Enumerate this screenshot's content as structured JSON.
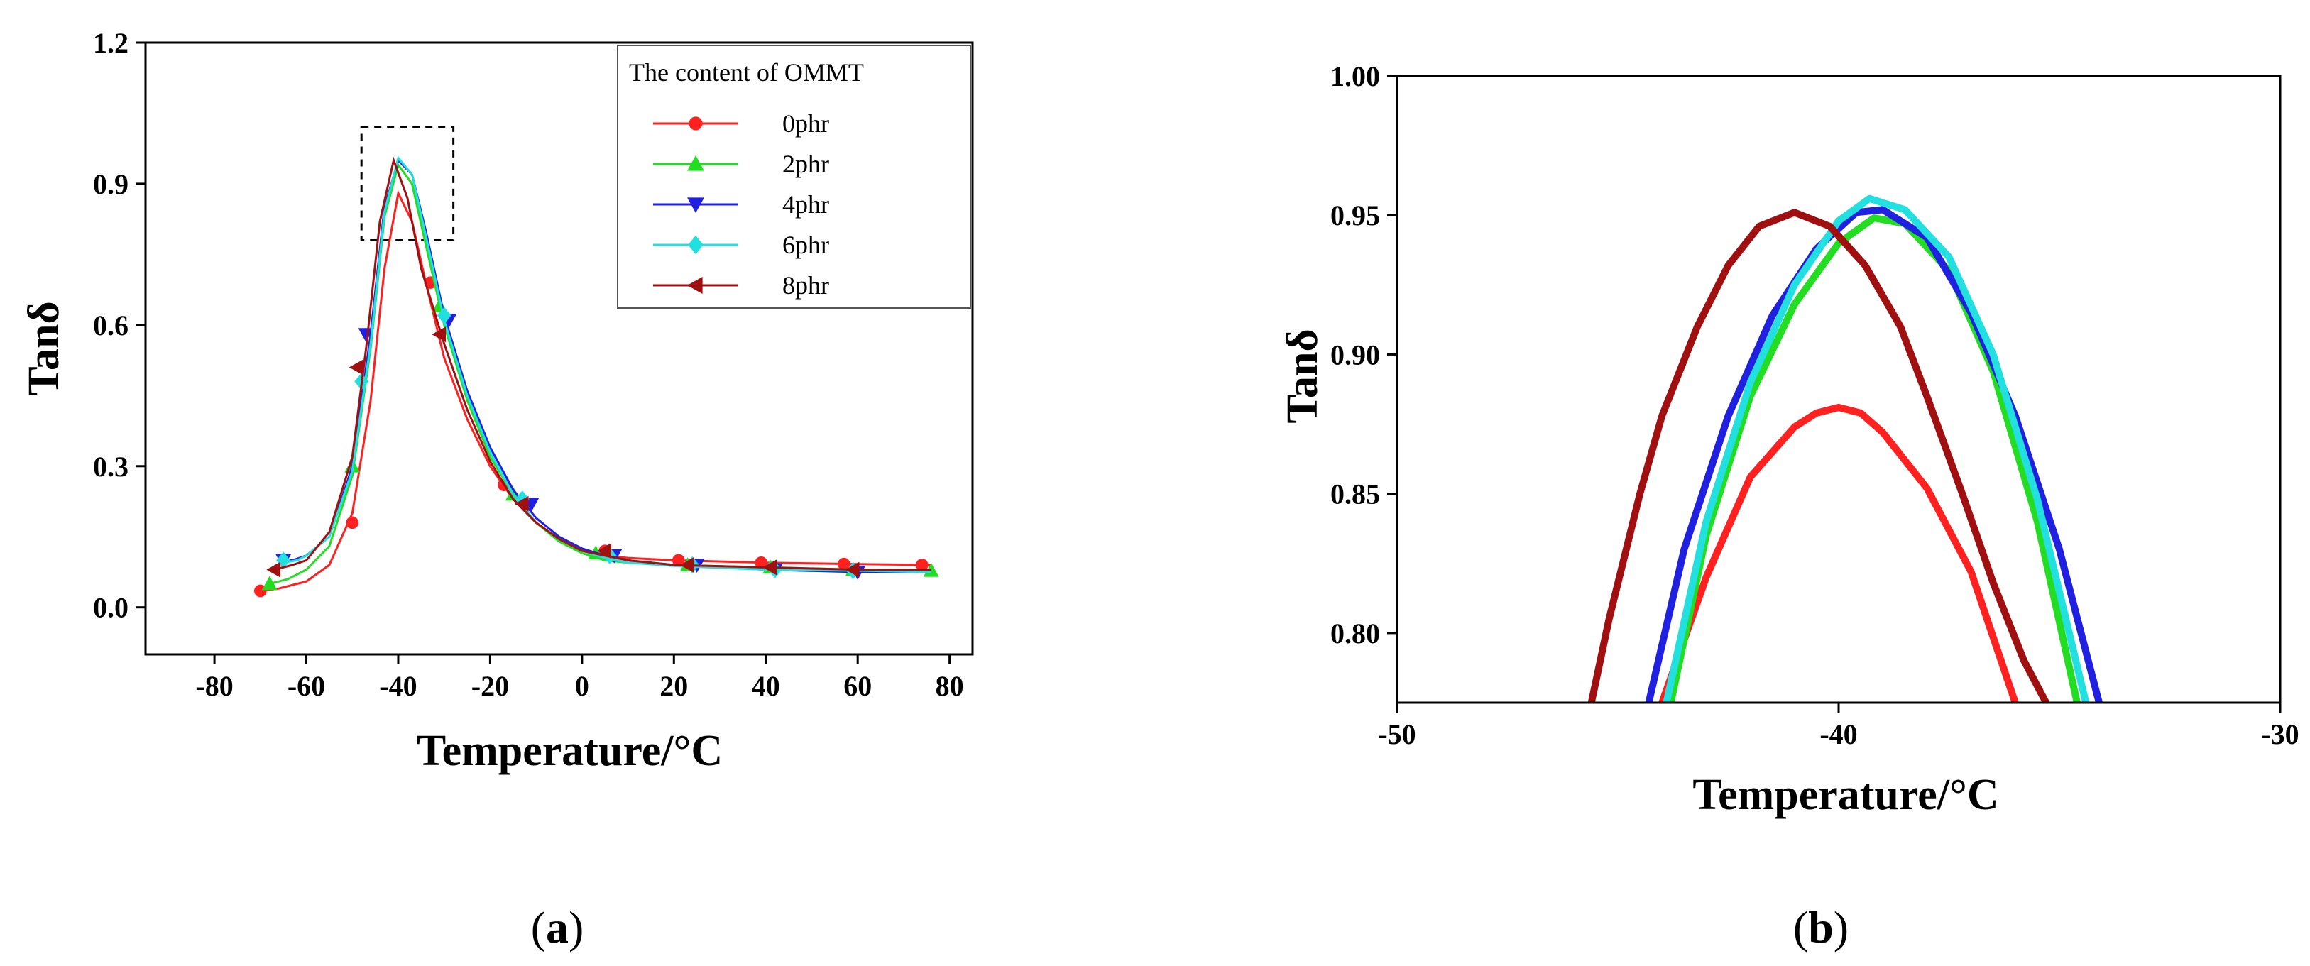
{
  "chart_data": [
    {
      "id": "a",
      "type": "line",
      "panel_label": "(a)",
      "panel_letter": "a",
      "xlabel": "Temperature/°C",
      "ylabel": "Tanδ",
      "xlim": [
        -95,
        85
      ],
      "ylim": [
        -0.1,
        1.2
      ],
      "xticks": [
        -80,
        -60,
        -40,
        -20,
        0,
        20,
        40,
        60,
        80
      ],
      "yticks": [
        0.0,
        0.3,
        0.6,
        0.9,
        1.2
      ],
      "xtick_labels": [
        "-80",
        "-60",
        "-40",
        "-20",
        "0",
        "20",
        "40",
        "60",
        "80"
      ],
      "ytick_labels": [
        "0.0",
        "0.3",
        "0.6",
        "0.9",
        "1.2"
      ],
      "legend": {
        "title": "The content of OMMT",
        "placement": "top-right"
      },
      "annotation": {
        "type": "dashed-box",
        "x_range": [
          -48,
          -28
        ],
        "y_range": [
          0.78,
          1.02
        ]
      },
      "series": [
        {
          "name": "0phr",
          "color": "#ff2020",
          "marker": "circle",
          "x": [
            -70,
            -66,
            -60,
            -55,
            -50,
            -46,
            -43,
            -40,
            -37,
            -34,
            -30,
            -25,
            -20,
            -15,
            -10,
            -5,
            0,
            5,
            10,
            20,
            40,
            60,
            76
          ],
          "y": [
            0.035,
            0.04,
            0.055,
            0.09,
            0.2,
            0.44,
            0.72,
            0.88,
            0.82,
            0.69,
            0.53,
            0.4,
            0.3,
            0.23,
            0.18,
            0.145,
            0.12,
            0.11,
            0.105,
            0.1,
            0.095,
            0.092,
            0.09
          ],
          "marker_x": [
            -70,
            -50,
            -33,
            -17,
            5,
            21,
            39,
            57,
            74
          ],
          "marker_y": [
            0.035,
            0.18,
            0.69,
            0.26,
            0.12,
            0.1,
            0.095,
            0.092,
            0.09
          ]
        },
        {
          "name": "2phr",
          "color": "#22dd22",
          "marker": "triangle-up",
          "x": [
            -68,
            -64,
            -60,
            -55,
            -50,
            -46,
            -43,
            -40,
            -37,
            -34,
            -30,
            -25,
            -20,
            -15,
            -10,
            -5,
            0,
            5,
            10,
            20,
            40,
            60,
            76
          ],
          "y": [
            0.05,
            0.06,
            0.08,
            0.13,
            0.28,
            0.55,
            0.83,
            0.94,
            0.9,
            0.77,
            0.6,
            0.44,
            0.32,
            0.24,
            0.18,
            0.14,
            0.115,
            0.1,
            0.095,
            0.09,
            0.085,
            0.08,
            0.078
          ],
          "marker_x": [
            -68,
            -50,
            -31,
            -15,
            3,
            23,
            41,
            59,
            76
          ],
          "marker_y": [
            0.05,
            0.3,
            0.64,
            0.24,
            0.115,
            0.09,
            0.085,
            0.08,
            0.078
          ]
        },
        {
          "name": "4phr",
          "color": "#2020e0",
          "marker": "triangle-down",
          "x": [
            -66,
            -63,
            -60,
            -55,
            -50,
            -46,
            -43,
            -40,
            -37,
            -34,
            -30,
            -25,
            -20,
            -15,
            -10,
            -5,
            0,
            5,
            10,
            20,
            40,
            60,
            76
          ],
          "y": [
            0.1,
            0.1,
            0.11,
            0.15,
            0.3,
            0.58,
            0.85,
            0.95,
            0.92,
            0.8,
            0.62,
            0.46,
            0.34,
            0.25,
            0.19,
            0.15,
            0.125,
            0.11,
            0.1,
            0.09,
            0.08,
            0.075,
            0.075
          ],
          "marker_x": [
            -65,
            -47,
            -29,
            -11,
            7,
            25,
            42,
            60
          ],
          "marker_y": [
            0.1,
            0.58,
            0.61,
            0.22,
            0.11,
            0.09,
            0.08,
            0.075
          ]
        },
        {
          "name": "6phr",
          "color": "#22e0e0",
          "marker": "diamond",
          "x": [
            -65,
            -62,
            -60,
            -55,
            -50,
            -46,
            -43,
            -40,
            -37,
            -34,
            -30,
            -25,
            -20,
            -15,
            -10,
            -5,
            0,
            5,
            10,
            20,
            40,
            60,
            76
          ],
          "y": [
            0.095,
            0.1,
            0.11,
            0.15,
            0.29,
            0.56,
            0.84,
            0.955,
            0.92,
            0.79,
            0.61,
            0.45,
            0.33,
            0.24,
            0.18,
            0.145,
            0.12,
            0.105,
            0.095,
            0.088,
            0.08,
            0.078,
            0.075
          ],
          "marker_x": [
            -65,
            -48,
            -30,
            -13,
            6,
            24,
            42,
            59
          ],
          "marker_y": [
            0.1,
            0.48,
            0.62,
            0.23,
            0.11,
            0.09,
            0.08,
            0.078
          ]
        },
        {
          "name": "8phr",
          "color": "#a01010",
          "marker": "triangle-left",
          "x": [
            -67,
            -63,
            -60,
            -55,
            -50,
            -47,
            -44,
            -41,
            -38,
            -35,
            -30,
            -25,
            -20,
            -15,
            -10,
            -5,
            0,
            5,
            10,
            20,
            40,
            60,
            76
          ],
          "y": [
            0.08,
            0.09,
            0.1,
            0.16,
            0.32,
            0.55,
            0.82,
            0.95,
            0.87,
            0.72,
            0.56,
            0.42,
            0.31,
            0.23,
            0.18,
            0.145,
            0.12,
            0.11,
            0.1,
            0.09,
            0.085,
            0.08,
            0.08
          ],
          "marker_x": [
            -67,
            -49,
            -31,
            -13,
            5,
            23,
            41,
            59
          ],
          "marker_y": [
            0.08,
            0.51,
            0.58,
            0.22,
            0.12,
            0.09,
            0.085,
            0.08
          ]
        }
      ]
    },
    {
      "id": "b",
      "type": "line",
      "panel_label": "(b)",
      "panel_letter": "b",
      "xlabel": "Temperature/°C",
      "ylabel": "Tanδ",
      "xlim": [
        -50,
        -30
      ],
      "ylim": [
        0.775,
        1.0
      ],
      "xticks": [
        -50,
        -40,
        -30
      ],
      "yticks": [
        0.8,
        0.85,
        0.9,
        0.95,
        1.0
      ],
      "xtick_labels": [
        "-50",
        "-40",
        "-30"
      ],
      "ytick_labels": [
        "0.80",
        "0.85",
        "0.90",
        "0.95",
        "1.00"
      ],
      "series": [
        {
          "name": "0phr",
          "color": "#ff2020",
          "x": [
            -44,
            -43,
            -42,
            -41,
            -40.5,
            -40,
            -39.5,
            -39,
            -38,
            -37,
            -36
          ],
          "y": [
            0.775,
            0.82,
            0.856,
            0.874,
            0.879,
            0.881,
            0.879,
            0.872,
            0.852,
            0.822,
            0.775
          ]
        },
        {
          "name": "2phr",
          "color": "#22dd22",
          "x": [
            -43.8,
            -43,
            -42,
            -41,
            -40,
            -39.2,
            -38.5,
            -37.5,
            -36.5,
            -35.5,
            -34.6
          ],
          "y": [
            0.775,
            0.835,
            0.885,
            0.918,
            0.94,
            0.949,
            0.947,
            0.93,
            0.894,
            0.84,
            0.775
          ]
        },
        {
          "name": "4phr",
          "color": "#2020e0",
          "x": [
            -44.3,
            -43.5,
            -42.5,
            -41.5,
            -40.5,
            -39.6,
            -39,
            -38,
            -37,
            -36,
            -35,
            -34.1
          ],
          "y": [
            0.775,
            0.83,
            0.878,
            0.914,
            0.938,
            0.951,
            0.952,
            0.942,
            0.915,
            0.878,
            0.83,
            0.775
          ]
        },
        {
          "name": "6phr",
          "color": "#22e0e0",
          "x": [
            -43.9,
            -43,
            -42,
            -41,
            -40,
            -39.3,
            -38.5,
            -37.5,
            -36.5,
            -35.5,
            -34.4
          ],
          "y": [
            0.775,
            0.84,
            0.89,
            0.925,
            0.948,
            0.956,
            0.952,
            0.935,
            0.9,
            0.848,
            0.775
          ]
        },
        {
          "name": "8phr",
          "color": "#a01010",
          "x": [
            -45.6,
            -45.2,
            -44.5,
            -44,
            -43.2,
            -42.5,
            -41.8,
            -41,
            -40.2,
            -39.4,
            -38.6,
            -38,
            -37.2,
            -36.5,
            -35.8,
            -35.3
          ],
          "y": [
            0.775,
            0.805,
            0.85,
            0.878,
            0.91,
            0.932,
            0.946,
            0.951,
            0.946,
            0.932,
            0.91,
            0.885,
            0.85,
            0.818,
            0.79,
            0.775
          ]
        }
      ]
    }
  ]
}
